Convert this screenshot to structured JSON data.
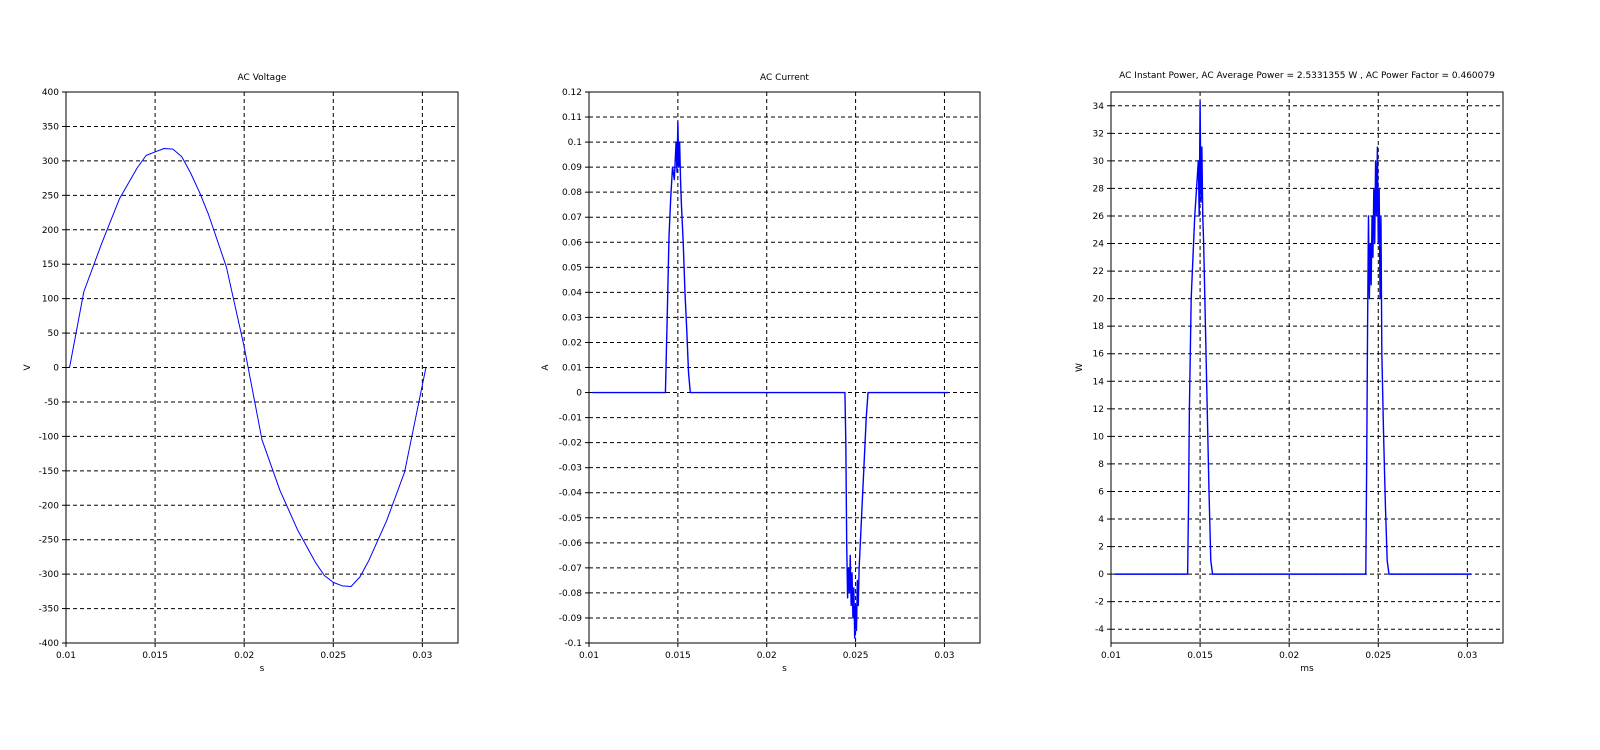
{
  "chart_data": [
    {
      "type": "line",
      "title": "AC Voltage",
      "xlabel": "s",
      "ylabel": "V",
      "xlim": [
        0.01,
        0.032
      ],
      "ylim": [
        -400,
        400
      ],
      "xticks": [
        0.01,
        0.015,
        0.02,
        0.025,
        0.03
      ],
      "xtick_labels": [
        "0.01",
        "0.015",
        "0.02",
        "0.025",
        "0.03"
      ],
      "yticks": [
        -400,
        -350,
        -300,
        -250,
        -200,
        -150,
        -100,
        -50,
        0,
        50,
        100,
        150,
        200,
        250,
        300,
        350,
        400
      ],
      "ytick_labels": [
        "-400",
        "-350",
        "-300",
        "-250",
        "-200",
        "-150",
        "-100",
        "-50",
        "0",
        "50",
        "100",
        "150",
        "200",
        "250",
        "300",
        "350",
        "400"
      ],
      "grid": true,
      "color": "#0000ff",
      "series": [
        {
          "x": [
            0.0102,
            0.011,
            0.012,
            0.013,
            0.014,
            0.0145,
            0.015,
            0.0155,
            0.016,
            0.0165,
            0.017,
            0.0175,
            0.018,
            0.019,
            0.02,
            0.021,
            0.022,
            0.023,
            0.024,
            0.0245,
            0.025,
            0.0255,
            0.026,
            0.0265,
            0.027,
            0.028,
            0.029,
            0.0302
          ],
          "y": [
            0,
            110,
            180,
            245,
            290,
            308,
            313,
            318,
            317,
            306,
            282,
            254,
            222,
            146,
            30,
            -105,
            -178,
            -236,
            -283,
            -302,
            -312,
            -317,
            -318,
            -304,
            -280,
            -222,
            -152,
            0
          ]
        }
      ]
    },
    {
      "type": "line",
      "title": "AC Current",
      "xlabel": "s",
      "ylabel": "A",
      "xlim": [
        0.01,
        0.032
      ],
      "ylim": [
        -0.1,
        0.12
      ],
      "xticks": [
        0.01,
        0.015,
        0.02,
        0.025,
        0.03
      ],
      "xtick_labels": [
        "0.01",
        "0.015",
        "0.02",
        "0.025",
        "0.03"
      ],
      "yticks": [
        -0.1,
        -0.09,
        -0.08,
        -0.07,
        -0.06,
        -0.05,
        -0.04,
        -0.03,
        -0.02,
        -0.01,
        0,
        0.01,
        0.02,
        0.03,
        0.04,
        0.05,
        0.06,
        0.07,
        0.08,
        0.09,
        0.1,
        0.11,
        0.12
      ],
      "ytick_labels": [
        "-0.1",
        "-0.09",
        "-0.08",
        "-0.07",
        "-0.06",
        "-0.05",
        "-0.04",
        "-0.03",
        "-0.02",
        "-0.01",
        "0",
        "0.01",
        "0.02",
        "0.03",
        "0.04",
        "0.05",
        "0.06",
        "0.07",
        "0.08",
        "0.09",
        "0.1",
        "0.11",
        "0.12"
      ],
      "grid": true,
      "color": "#0000ff",
      "series": [
        {
          "x": [
            0.0102,
            0.0143,
            0.0144,
            0.0145,
            0.0146,
            0.0147,
            0.0148,
            0.0149,
            0.01495,
            0.015,
            0.01505,
            0.0151,
            0.01515,
            0.0152,
            0.0153,
            0.0154,
            0.0155,
            0.0156,
            0.0157,
            0.0158,
            0.0159,
            0.0244,
            0.02445,
            0.0245,
            0.02455,
            0.0246,
            0.02465,
            0.0247,
            0.02475,
            0.0248,
            0.02485,
            0.0249,
            0.02495,
            0.025,
            0.02505,
            0.0251,
            0.02515,
            0.0252,
            0.0253,
            0.0254,
            0.0255,
            0.0256,
            0.0257,
            0.0259,
            0.0302
          ],
          "y": [
            0,
            0,
            0.03,
            0.062,
            0.078,
            0.09,
            0.085,
            0.1,
            0.088,
            0.108,
            0.09,
            0.1,
            0.085,
            0.075,
            0.06,
            0.04,
            0.025,
            0.008,
            0,
            0,
            0,
            0,
            -0.02,
            -0.06,
            -0.082,
            -0.07,
            -0.08,
            -0.065,
            -0.085,
            -0.072,
            -0.09,
            -0.078,
            -0.098,
            -0.085,
            -0.095,
            -0.075,
            -0.085,
            -0.07,
            -0.055,
            -0.04,
            -0.025,
            -0.01,
            0,
            0,
            0
          ]
        }
      ]
    },
    {
      "type": "line",
      "title": "AC Instant Power, AC Average Power = 2.5331355 W , AC Power Factor = 0.460079",
      "xlabel": "ms",
      "ylabel": "W",
      "xlim": [
        0.01,
        0.032
      ],
      "ylim": [
        -5,
        35
      ],
      "xticks": [
        0.01,
        0.015,
        0.02,
        0.025,
        0.03
      ],
      "xtick_labels": [
        "0.01",
        "0.015",
        "0.02",
        "0.025",
        "0.03"
      ],
      "yticks": [
        -4,
        -2,
        0,
        2,
        4,
        6,
        8,
        10,
        12,
        14,
        16,
        18,
        20,
        22,
        24,
        26,
        28,
        30,
        32,
        34
      ],
      "ytick_labels": [
        "-4",
        "-2",
        "0",
        "2",
        "4",
        "6",
        "8",
        "10",
        "12",
        "14",
        "16",
        "18",
        "20",
        "22",
        "24",
        "26",
        "28",
        "30",
        "32",
        "34"
      ],
      "grid": true,
      "color": "#0000ff",
      "series": [
        {
          "x": [
            0.0102,
            0.0143,
            0.01435,
            0.0144,
            0.0145,
            0.0146,
            0.0147,
            0.0148,
            0.0149,
            0.01495,
            0.015,
            0.01505,
            0.0151,
            0.01515,
            0.0152,
            0.0153,
            0.0154,
            0.0155,
            0.0156,
            0.0157,
            0.0158,
            0.0243,
            0.02435,
            0.0244,
            0.02445,
            0.0245,
            0.02455,
            0.0246,
            0.02465,
            0.0247,
            0.02475,
            0.0248,
            0.02485,
            0.0249,
            0.02495,
            0.025,
            0.02505,
            0.0251,
            0.02515,
            0.0252,
            0.0253,
            0.0254,
            0.0255,
            0.0256,
            0.0258,
            0.0302
          ],
          "y": [
            0,
            0,
            5,
            12,
            20,
            23,
            26,
            28,
            30,
            26,
            34.3,
            27,
            31,
            26,
            24,
            18,
            12,
            6,
            1,
            0,
            0,
            0,
            8,
            18,
            26,
            20,
            24,
            21,
            26,
            23,
            28,
            24,
            30,
            26,
            31,
            24,
            28,
            20,
            26,
            16,
            10,
            5,
            1,
            0,
            0,
            0
          ]
        }
      ]
    }
  ]
}
